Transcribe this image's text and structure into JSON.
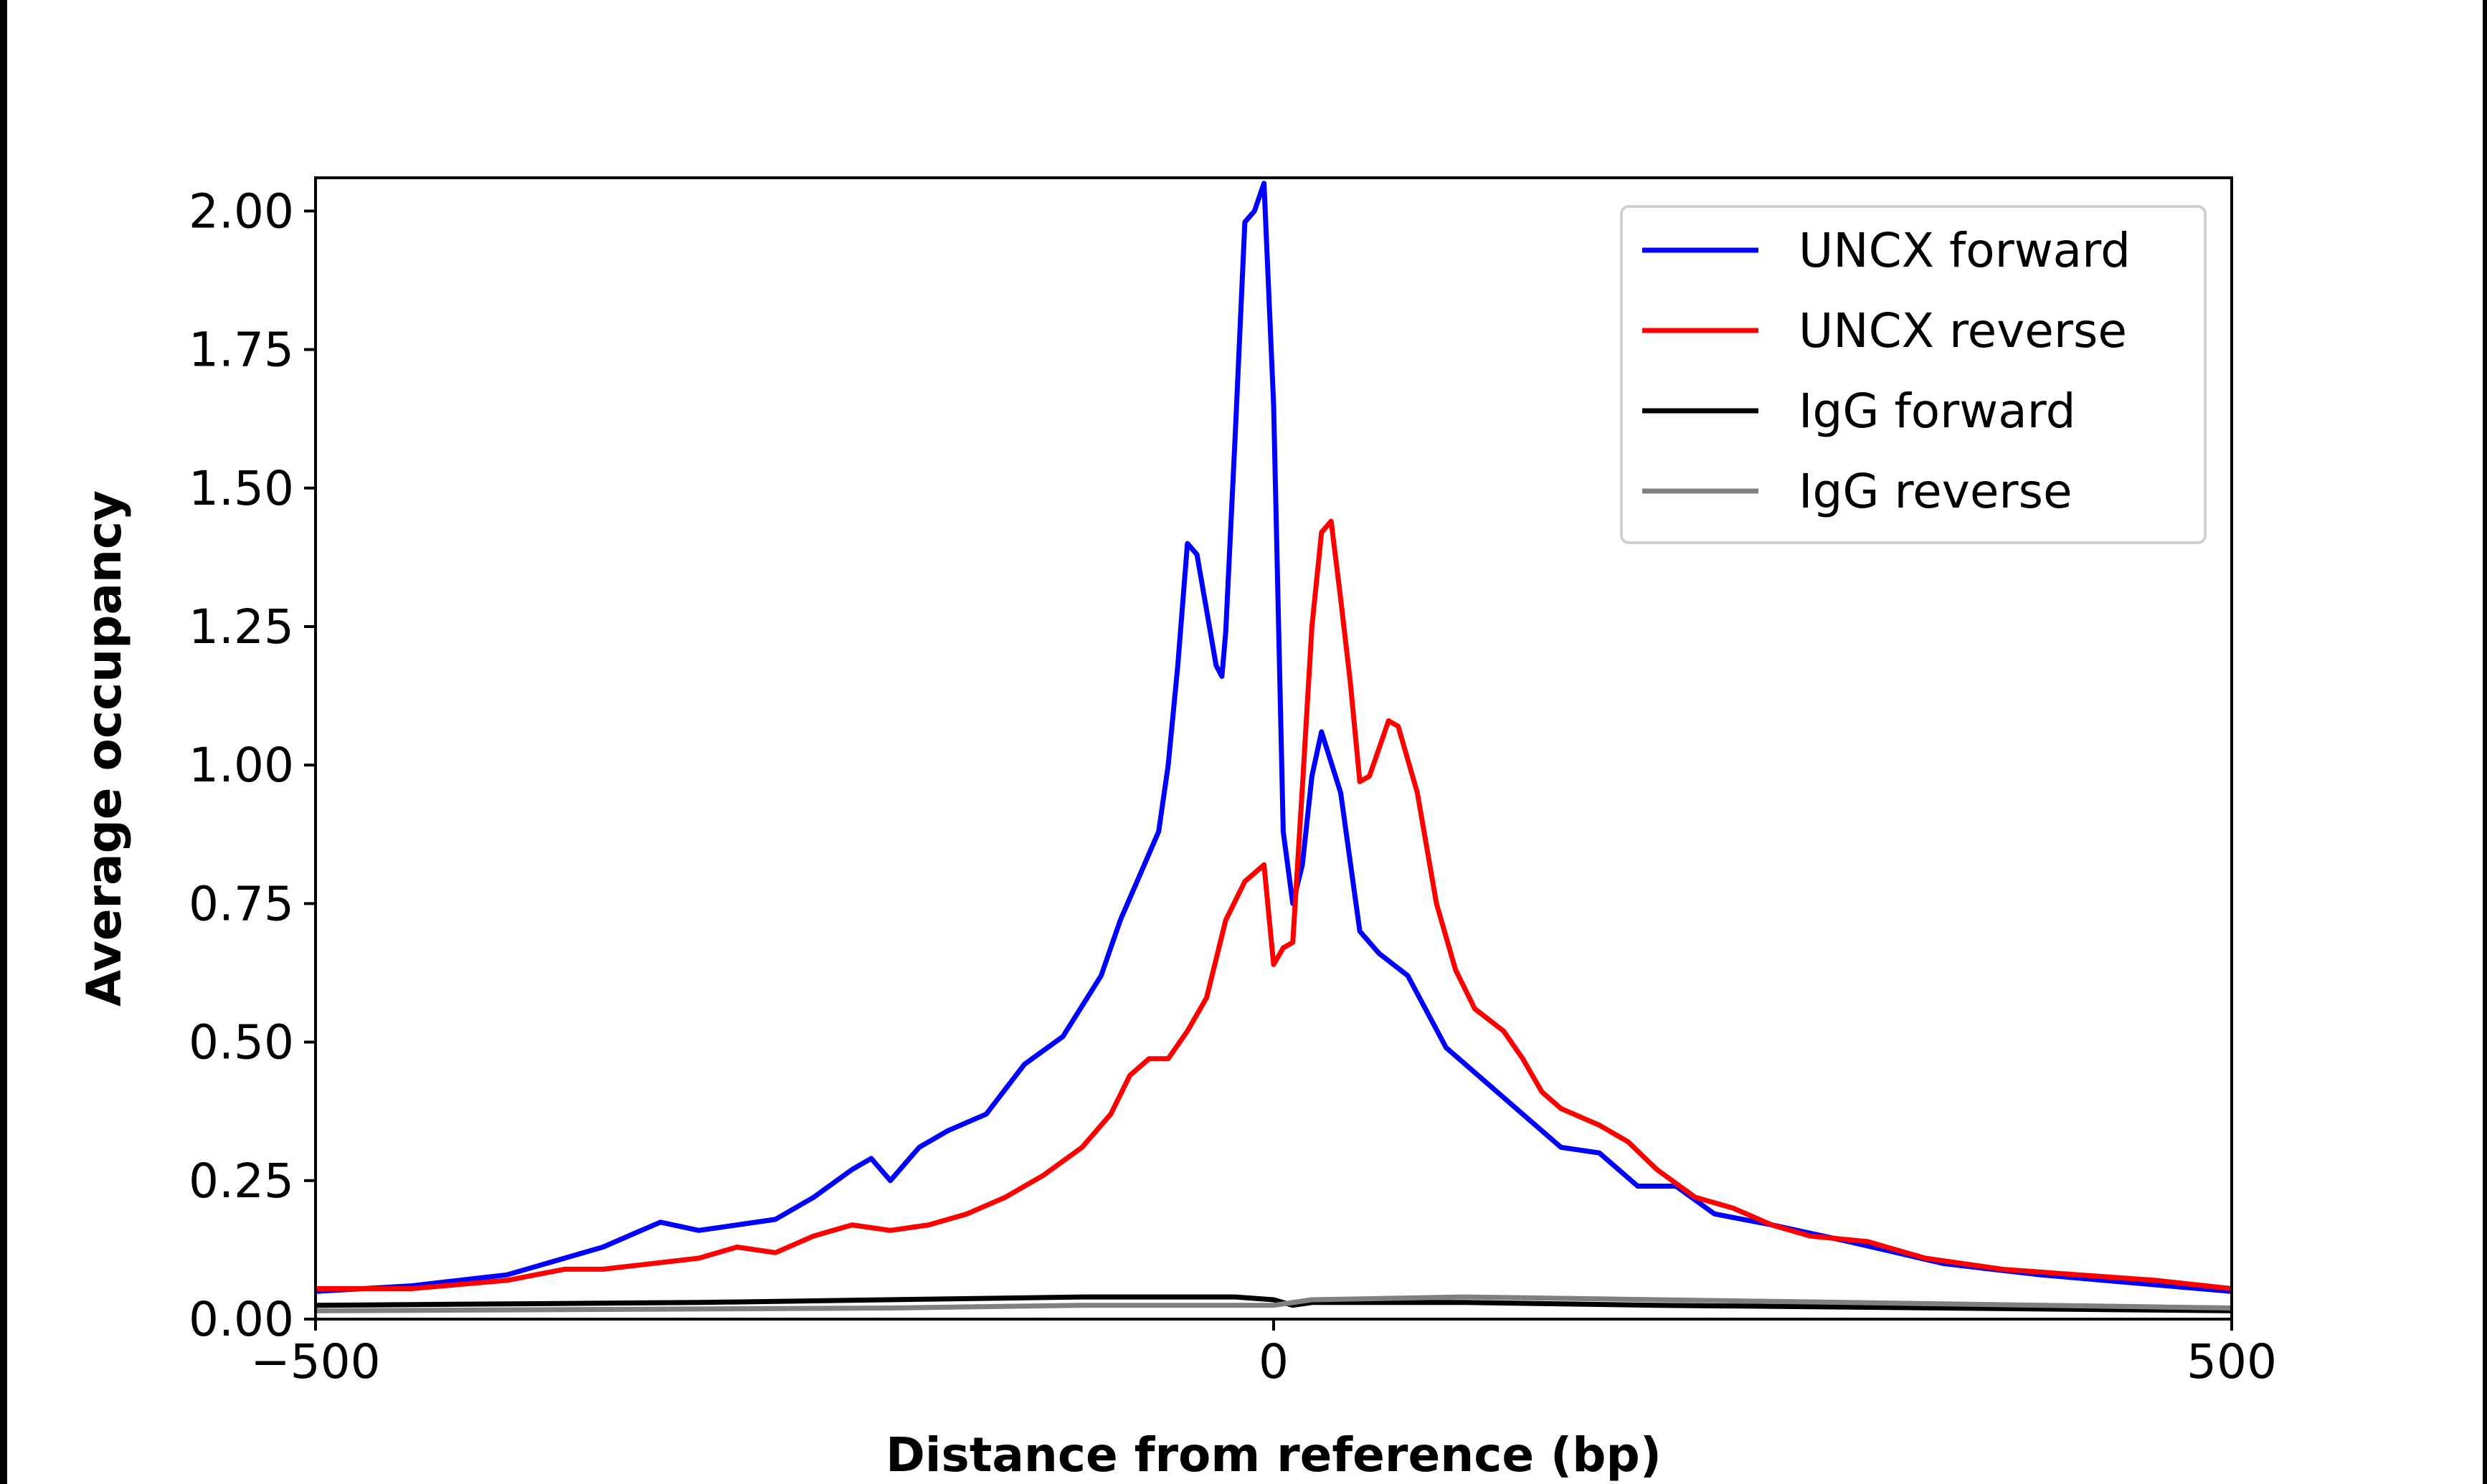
{
  "chart_data": {
    "type": "line",
    "title": "",
    "xlabel": "Distance from reference (bp)",
    "ylabel": "Average occupancy",
    "xlim": [
      -500,
      500
    ],
    "ylim": [
      0,
      2.06
    ],
    "xticks": [
      -500,
      0,
      500
    ],
    "xtick_labels": [
      "−500",
      "0",
      "500"
    ],
    "yticks": [
      0,
      0.25,
      0.5,
      0.75,
      1.0,
      1.25,
      1.5,
      1.75,
      2.0
    ],
    "ytick_labels": [
      "0.00",
      "0.25",
      "0.50",
      "0.75",
      "1.00",
      "1.25",
      "1.50",
      "1.75",
      "2.00"
    ],
    "grid": false,
    "legend_position": "top-right",
    "series": [
      {
        "name": "UNCX forward",
        "color": "#0000ff",
        "x": [
          -500,
          -450,
          -400,
          -380,
          -350,
          -330,
          -320,
          -300,
          -280,
          -260,
          -240,
          -220,
          -210,
          -200,
          -185,
          -170,
          -150,
          -130,
          -110,
          -90,
          -80,
          -70,
          -60,
          -55,
          -50,
          -45,
          -40,
          -35,
          -30,
          -27,
          -25,
          -20,
          -15,
          -10,
          -5,
          0,
          5,
          10,
          15,
          20,
          25,
          35,
          45,
          55,
          70,
          90,
          110,
          130,
          150,
          170,
          190,
          210,
          230,
          260,
          300,
          350,
          400,
          450,
          500
        ],
        "y": [
          0.05,
          0.06,
          0.08,
          0.1,
          0.13,
          0.16,
          0.175,
          0.16,
          0.17,
          0.18,
          0.22,
          0.27,
          0.29,
          0.25,
          0.31,
          0.34,
          0.37,
          0.46,
          0.51,
          0.62,
          0.72,
          0.8,
          0.88,
          1.0,
          1.18,
          1.4,
          1.38,
          1.28,
          1.18,
          1.16,
          1.24,
          1.6,
          1.98,
          2.0,
          2.05,
          1.65,
          0.88,
          0.75,
          0.82,
          0.98,
          1.06,
          0.95,
          0.7,
          0.66,
          0.62,
          0.49,
          0.43,
          0.37,
          0.31,
          0.3,
          0.24,
          0.24,
          0.19,
          0.17,
          0.14,
          0.1,
          0.08,
          0.065,
          0.05
        ]
      },
      {
        "name": "UNCX reverse",
        "color": "#ff0000",
        "x": [
          -500,
          -450,
          -400,
          -370,
          -350,
          -300,
          -280,
          -260,
          -240,
          -220,
          -200,
          -180,
          -160,
          -140,
          -120,
          -100,
          -85,
          -75,
          -65,
          -55,
          -45,
          -35,
          -25,
          -15,
          -5,
          0,
          5,
          10,
          15,
          20,
          25,
          30,
          35,
          40,
          45,
          50,
          55,
          60,
          65,
          75,
          85,
          95,
          105,
          120,
          130,
          140,
          150,
          170,
          185,
          200,
          220,
          240,
          260,
          280,
          310,
          340,
          380,
          420,
          460,
          500
        ],
        "y": [
          0.055,
          0.055,
          0.07,
          0.09,
          0.09,
          0.11,
          0.13,
          0.12,
          0.15,
          0.17,
          0.16,
          0.17,
          0.19,
          0.22,
          0.26,
          0.31,
          0.37,
          0.44,
          0.47,
          0.47,
          0.52,
          0.58,
          0.72,
          0.79,
          0.82,
          0.64,
          0.67,
          0.68,
          0.96,
          1.25,
          1.42,
          1.44,
          1.3,
          1.15,
          0.97,
          0.98,
          1.03,
          1.08,
          1.07,
          0.95,
          0.75,
          0.63,
          0.56,
          0.52,
          0.47,
          0.41,
          0.38,
          0.35,
          0.32,
          0.27,
          0.22,
          0.2,
          0.17,
          0.15,
          0.14,
          0.11,
          0.09,
          0.08,
          0.07,
          0.055
        ]
      },
      {
        "name": "IgG forward",
        "color": "#000000",
        "x": [
          -500,
          -300,
          -100,
          -20,
          0,
          10,
          20,
          100,
          200,
          500
        ],
        "y": [
          0.025,
          0.03,
          0.04,
          0.04,
          0.035,
          0.025,
          0.03,
          0.03,
          0.025,
          0.015
        ]
      },
      {
        "name": "IgG reverse",
        "color": "#808080",
        "x": [
          -500,
          -200,
          -100,
          0,
          20,
          100,
          200,
          500
        ],
        "y": [
          0.015,
          0.02,
          0.025,
          0.025,
          0.035,
          0.04,
          0.035,
          0.02
        ]
      }
    ]
  }
}
